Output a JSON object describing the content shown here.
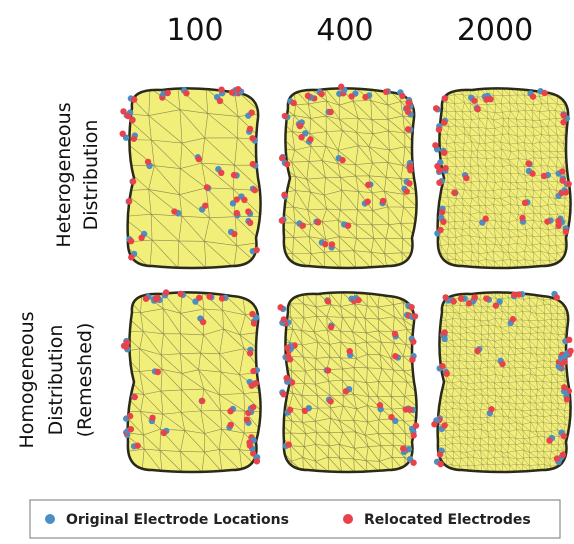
{
  "columns": [
    "100",
    "400",
    "2000"
  ],
  "rows": [
    {
      "lines": [
        "Heterogeneous",
        "Distribution"
      ]
    },
    {
      "lines": [
        "Homogeneous",
        "Distribution",
        "(Remeshed)"
      ]
    }
  ],
  "legend": [
    "Original Electrode Locations",
    "Relocated Electrodes"
  ]
}
